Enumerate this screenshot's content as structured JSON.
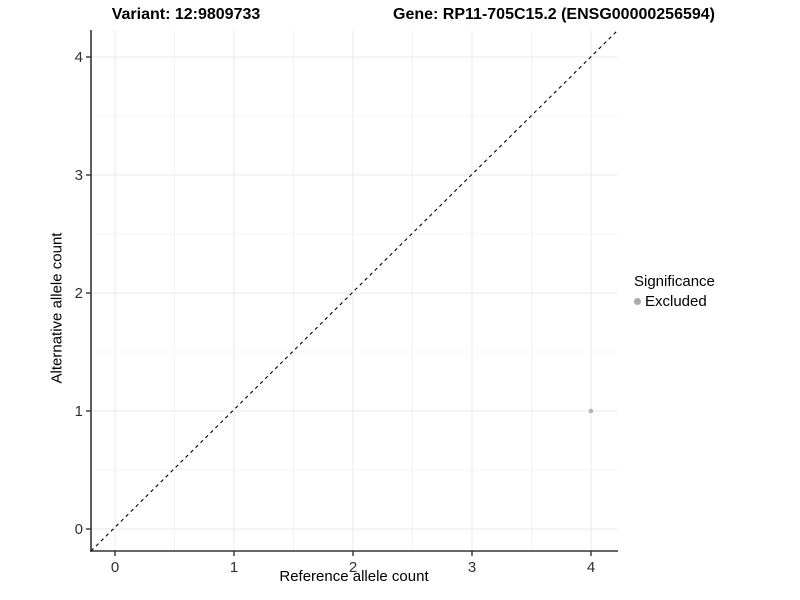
{
  "titles": {
    "variant": "Variant: 12:9809733",
    "gene": "Gene: RP11-705C15.2 (ENSG00000256594)"
  },
  "axes": {
    "x": {
      "label": "Reference allele count",
      "ticks": [
        0,
        1,
        2,
        3,
        4
      ],
      "minor_ticks": [
        0.5,
        1.5,
        2.5,
        3.5
      ],
      "range": [
        -0.2,
        4.23
      ]
    },
    "y": {
      "label": "Alternative allele count",
      "ticks": [
        0,
        1,
        2,
        3,
        4
      ],
      "minor_ticks": [
        0.5,
        1.5,
        2.5,
        3.5
      ],
      "range": [
        -0.19,
        4.23
      ]
    }
  },
  "legend": {
    "title": "Significance",
    "items": [
      {
        "label": "Excluded",
        "color": "#aaaaaa"
      }
    ]
  },
  "chart_data": {
    "type": "scatter",
    "title_left": "Variant: 12:9809733",
    "title_right": "Gene: RP11-705C15.2 (ENSG00000256594)",
    "xlabel": "Reference allele count",
    "ylabel": "Alternative allele count",
    "xlim": [
      -0.2,
      4.23
    ],
    "ylim": [
      -0.19,
      4.23
    ],
    "grid": "on",
    "legend_position": "right",
    "points": [
      {
        "x": 4,
        "y": 1,
        "series": "Excluded"
      }
    ],
    "series": [
      {
        "name": "Excluded",
        "color": "#b2b2b2",
        "point_radius": 2.3
      }
    ],
    "identity_line": {
      "equation": "y = x",
      "style": "dashed",
      "color": "#000000"
    }
  },
  "colors": {
    "background": "#ffffff",
    "axis_line": "#333333",
    "tick_label": "#303030",
    "grid_major": "#e9e9e9",
    "grid_minor": "#f4f4f4",
    "point": "#b2b2b2",
    "legend_key": "#aaaaaa",
    "identity_line": "#000000"
  }
}
